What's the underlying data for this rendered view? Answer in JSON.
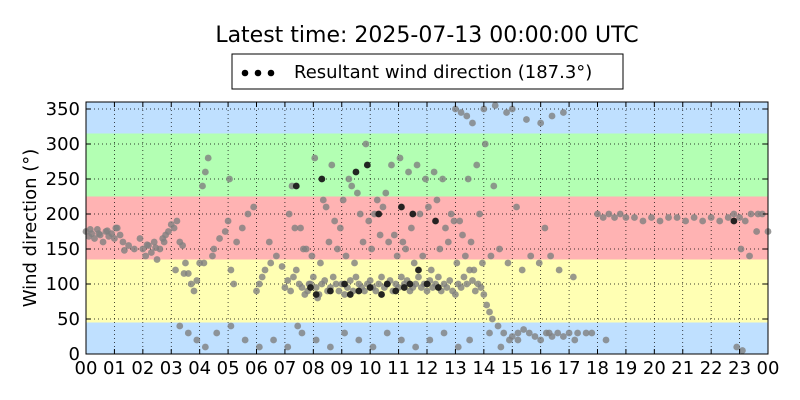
{
  "chart_data": {
    "type": "scatter",
    "title": "Latest time: 2025-07-13 00:00:00 UTC",
    "ylabel": "Wind direction (°)",
    "xlabel": "",
    "xlim": [
      0,
      24
    ],
    "ylim": [
      0,
      360
    ],
    "x_ticks": [
      0,
      1,
      2,
      3,
      4,
      5,
      6,
      7,
      8,
      9,
      10,
      11,
      12,
      13,
      14,
      15,
      16,
      17,
      18,
      19,
      20,
      21,
      22,
      23,
      24
    ],
    "x_tick_labels": [
      "00",
      "01",
      "02",
      "03",
      "04",
      "05",
      "06",
      "07",
      "08",
      "09",
      "10",
      "11",
      "12",
      "13",
      "14",
      "15",
      "16",
      "17",
      "18",
      "19",
      "20",
      "21",
      "22",
      "23",
      "00"
    ],
    "y_ticks": [
      0,
      50,
      100,
      150,
      200,
      250,
      300,
      350
    ],
    "grid": true,
    "legend_position": "top-center",
    "legend": [
      "Resultant wind direction (187.3°)"
    ],
    "background_bands": [
      {
        "from": 0,
        "to": 45,
        "color": "#bfe0ff"
      },
      {
        "from": 45,
        "to": 135,
        "color": "#ffffb3"
      },
      {
        "from": 135,
        "to": 225,
        "color": "#ffb3b3"
      },
      {
        "from": 225,
        "to": 315,
        "color": "#b3ffb3"
      },
      {
        "from": 315,
        "to": 360,
        "color": "#bfe0ff"
      }
    ],
    "series": [
      {
        "name": "Resultant wind direction (187.3°)",
        "color": "#808080",
        "x": [
          0.0,
          0.1,
          0.2,
          0.3,
          0.4,
          0.5,
          0.6,
          0.7,
          0.8,
          0.9,
          1.0,
          1.1,
          1.2,
          1.3,
          1.5,
          1.7,
          1.9,
          2.0,
          2.1,
          2.2,
          2.3,
          2.4,
          2.5,
          2.6,
          2.7,
          2.8,
          2.9,
          3.0,
          3.1,
          3.2,
          3.3,
          3.4,
          3.5,
          3.6,
          3.7,
          3.8,
          3.9,
          4.0,
          4.1,
          4.2,
          4.3,
          4.5,
          4.7,
          4.9,
          5.0,
          5.1,
          5.2,
          5.3,
          5.5,
          5.7,
          5.9,
          6.0,
          6.1,
          6.2,
          6.3,
          6.5,
          6.7,
          6.9,
          7.0,
          7.1,
          7.2,
          7.3,
          7.4,
          7.5,
          7.6,
          7.7,
          7.8,
          7.9,
          8.0,
          8.1,
          8.2,
          8.3,
          8.4,
          8.5,
          8.6,
          8.7,
          8.8,
          8.9,
          9.0,
          9.1,
          9.2,
          9.3,
          9.4,
          9.5,
          9.6,
          9.7,
          9.8,
          9.9,
          10.0,
          10.1,
          10.2,
          10.3,
          10.4,
          10.5,
          10.6,
          10.7,
          10.8,
          10.9,
          11.0,
          11.1,
          11.2,
          11.3,
          11.4,
          11.5,
          11.6,
          11.7,
          11.8,
          11.9,
          12.0,
          12.1,
          12.2,
          12.3,
          12.4,
          12.5,
          12.6,
          12.7,
          12.8,
          12.9,
          13.0,
          13.1,
          13.2,
          13.3,
          13.4,
          13.5,
          13.6,
          13.7,
          13.8,
          13.9,
          14.0,
          14.1,
          14.2,
          14.3,
          14.5,
          14.7,
          14.9,
          15.0,
          15.2,
          15.4,
          15.6,
          15.8,
          16.0,
          16.2,
          16.4,
          16.6,
          16.8,
          17.0,
          17.3,
          17.6,
          18.0,
          18.2,
          18.4,
          18.6,
          18.8,
          19.0,
          19.3,
          19.6,
          19.9,
          20.2,
          20.5,
          20.8,
          21.1,
          21.4,
          21.7,
          22.0,
          22.3,
          22.6,
          22.8,
          23.0,
          23.2,
          23.4,
          23.6,
          23.8,
          24.0,
          0.15,
          0.45,
          0.75,
          1.05,
          1.35,
          2.15,
          2.45,
          2.75,
          3.15,
          3.45,
          4.15,
          4.45,
          5.05,
          6.45,
          7.15,
          7.45,
          7.75,
          8.05,
          8.35,
          8.65,
          8.95,
          9.25,
          9.55,
          9.85,
          10.15,
          10.45,
          10.75,
          11.05,
          11.35,
          11.65,
          11.95,
          12.25,
          12.55,
          12.85,
          13.15,
          13.45,
          13.75,
          14.05,
          14.35,
          15.15,
          16.15,
          17.15,
          23.05,
          23.35,
          23.65,
          7.25,
          7.55,
          7.85,
          8.15,
          8.45,
          8.75,
          9.05,
          9.35,
          9.65,
          9.95,
          10.25,
          10.55,
          10.85,
          11.15,
          11.45,
          11.75,
          12.05,
          12.35,
          12.65,
          12.95,
          13.25,
          13.55,
          13.85,
          7.35,
          7.65,
          7.95,
          8.25,
          8.55,
          8.85,
          9.15,
          9.45,
          9.75,
          10.05,
          10.35,
          10.65,
          10.95,
          11.25,
          11.55,
          11.85,
          12.15,
          12.45,
          12.75,
          13.05,
          13.35,
          13.65,
          13.95,
          14.25,
          14.55,
          14.85,
          15.35,
          15.65,
          15.95,
          16.35,
          16.65,
          13.0,
          13.2,
          13.4,
          13.6,
          14.0,
          14.4,
          14.8,
          15.0,
          15.5,
          16.0,
          16.4,
          16.8,
          3.3,
          3.6,
          3.9,
          4.2,
          4.6,
          5.1,
          5.6,
          6.1,
          6.6,
          7.1,
          7.6,
          8.1,
          8.6,
          9.1,
          9.6,
          10.1,
          10.6,
          11.1,
          11.6,
          12.1,
          12.6,
          13.1,
          13.5,
          14.2,
          14.6,
          15.2,
          16.3,
          17.2,
          17.8,
          18.3,
          22.9,
          23.1
        ],
        "y": [
          175,
          168,
          172,
          165,
          178,
          170,
          160,
          175,
          168,
          172,
          165,
          180,
          170,
          160,
          155,
          150,
          165,
          150,
          140,
          155,
          145,
          160,
          135,
          150,
          165,
          170,
          175,
          185,
          180,
          190,
          160,
          155,
          130,
          115,
          100,
          90,
          105,
          130,
          240,
          260,
          280,
          150,
          165,
          175,
          190,
          120,
          100,
          160,
          180,
          200,
          210,
          90,
          100,
          110,
          120,
          130,
          140,
          125,
          95,
          105,
          90,
          110,
          120,
          100,
          95,
          85,
          90,
          100,
          110,
          95,
          85,
          100,
          105,
          90,
          95,
          110,
          100,
          90,
          100,
          85,
          95,
          105,
          90,
          110,
          100,
          95,
          90,
          100,
          105,
          95,
          90,
          100,
          110,
          95,
          100,
          105,
          90,
          100,
          95,
          110,
          100,
          105,
          90,
          95,
          100,
          110,
          95,
          100,
          90,
          105,
          95,
          100,
          110,
          90,
          100,
          95,
          105,
          90,
          85,
          100,
          95,
          110,
          100,
          120,
          105,
          90,
          100,
          95,
          85,
          70,
          60,
          50,
          40,
          30,
          20,
          25,
          30,
          35,
          30,
          25,
          20,
          30,
          25,
          30,
          25,
          30,
          30,
          30,
          200,
          195,
          200,
          195,
          200,
          195,
          195,
          190,
          195,
          190,
          195,
          195,
          190,
          195,
          190,
          195,
          190,
          195,
          200,
          195,
          190,
          200,
          175,
          200,
          175,
          178,
          172,
          176,
          180,
          148,
          156,
          152,
          160,
          120,
          115,
          130,
          140,
          250,
          160,
          200,
          40,
          150,
          280,
          220,
          270,
          180,
          250,
          230,
          300,
          200,
          210,
          270,
          280,
          260,
          270,
          250,
          260,
          250,
          200,
          190,
          250,
          270,
          300,
          240,
          210,
          180,
          110,
          150,
          140,
          200,
          240,
          180,
          100,
          80,
          210,
          190,
          220,
          240,
          200,
          190,
          220,
          230,
          170,
          160,
          180,
          200,
          210,
          220,
          180,
          190,
          170,
          160,
          200,
          180,
          150,
          140,
          130,
          160,
          150,
          140,
          130,
          160,
          150,
          170,
          160,
          140,
          150,
          130,
          140,
          120,
          150,
          160,
          130,
          140,
          120,
          130,
          140,
          150,
          130,
          120,
          140,
          130,
          140,
          120,
          350,
          345,
          340,
          330,
          350,
          355,
          345,
          350,
          335,
          330,
          340,
          345,
          40,
          30,
          20,
          10,
          30,
          40,
          20,
          10,
          20,
          10,
          30,
          20,
          10,
          30,
          20,
          10,
          30,
          20,
          10,
          20,
          30,
          10,
          20,
          30,
          10,
          20,
          30,
          20,
          30,
          20,
          10,
          5
        ]
      },
      {
        "name": "",
        "color": "#1a1a1a",
        "x": [
          7.9,
          8.1,
          8.6,
          9.1,
          9.3,
          9.6,
          10.0,
          10.4,
          10.6,
          10.9,
          11.2,
          11.4,
          11.7,
          12.0,
          12.4,
          7.4,
          8.3,
          9.5,
          9.9,
          10.3,
          11.1,
          11.5,
          12.3,
          22.8
        ],
        "y": [
          95,
          85,
          90,
          100,
          85,
          90,
          95,
          85,
          100,
          90,
          95,
          100,
          120,
          100,
          95,
          240,
          250,
          260,
          270,
          200,
          210,
          200,
          190,
          190
        ]
      }
    ]
  }
}
